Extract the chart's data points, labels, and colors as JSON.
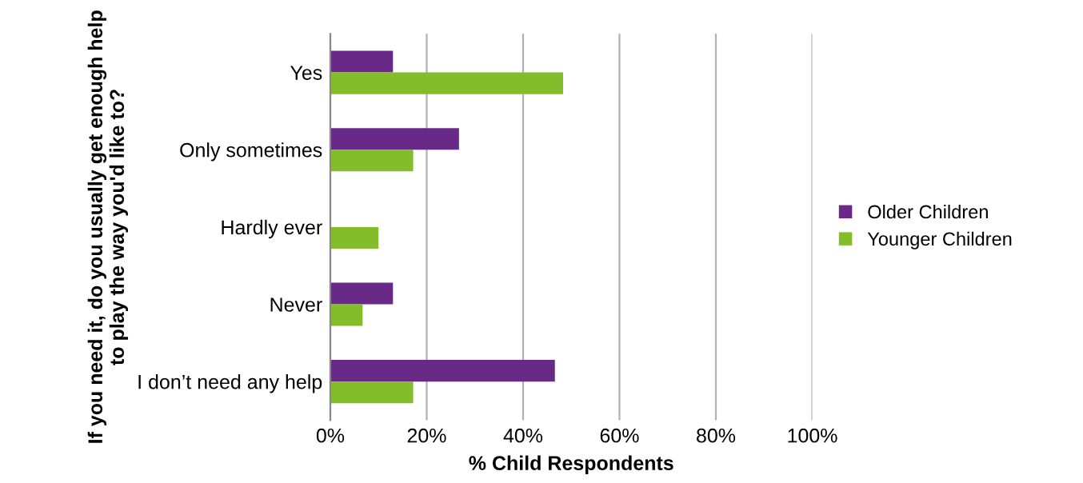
{
  "chart_data": {
    "type": "bar",
    "orientation": "horizontal",
    "ylabel": "If you need it, do you usually get enough help to play the way you'd like to?",
    "xlabel": "% Child Respondents",
    "categories": [
      "Yes",
      "Only sometimes",
      "Hardly ever",
      "Never",
      "I don’t need any help"
    ],
    "series": [
      {
        "name": "Older Children",
        "color": "#682a86",
        "values": [
          13.0,
          26.7,
          0,
          13.0,
          46.6
        ]
      },
      {
        "name": "Younger Children",
        "color": "#84bd2c",
        "values": [
          48.3,
          17.2,
          10.0,
          6.7,
          17.2
        ]
      }
    ],
    "xlim": [
      0,
      100
    ],
    "xticks": [
      {
        "value": 0,
        "label": "0%"
      },
      {
        "value": 20,
        "label": "20%"
      },
      {
        "value": 40,
        "label": "40%"
      },
      {
        "value": 60,
        "label": "60%"
      },
      {
        "value": 80,
        "label": "80%"
      },
      {
        "value": 100,
        "label": "100%"
      }
    ],
    "grid": "x",
    "legend": "right"
  }
}
